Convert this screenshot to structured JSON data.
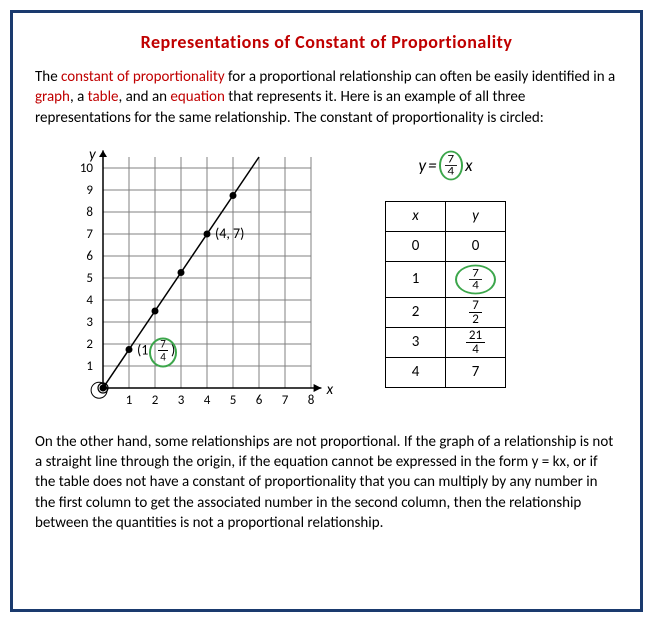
{
  "title": "Representations of Constant of Proportionality",
  "intro": {
    "t1": "The ",
    "h1": "constant of proportionality",
    "t2": " for a proportional relationship can often be easily identified in a ",
    "h2": "graph",
    "t3": ", a ",
    "h3": "table",
    "t4": ", and an ",
    "h4": "equation",
    "t5": " that represents it. Here is an example of all three representations for the same relationship. The constant of proportionality is circled:"
  },
  "graph": {
    "xlabel": "x",
    "ylabel": "y",
    "xlim": [
      0,
      8
    ],
    "ylim": [
      0,
      10.5
    ],
    "xticks": [
      1,
      2,
      3,
      4,
      5,
      6,
      7,
      8
    ],
    "yticks": [
      1,
      2,
      3,
      4,
      5,
      6,
      7,
      8,
      9,
      10
    ],
    "points": [
      {
        "x": 0,
        "y": 0
      },
      {
        "x": 1,
        "y": 1.75
      },
      {
        "x": 2,
        "y": 3.5
      },
      {
        "x": 3,
        "y": 5.25
      },
      {
        "x": 4,
        "y": 7
      },
      {
        "x": 5,
        "y": 8.75
      }
    ],
    "labelA": "(4, 7)",
    "labelB_prefix": "(1, ",
    "labelB_num": "7",
    "labelB_den": "4",
    "labelB_suffix": ")",
    "line_color": "#000000",
    "grid_color": "#808080",
    "axis_color": "#000000",
    "circle_color": "#3ca64b",
    "dot_radius": 3.5,
    "grid_width": 1,
    "axis_width": 1.5
  },
  "equation": {
    "lhs": "y",
    "eq": " = ",
    "num": "7",
    "den": "4",
    "rhs": "x"
  },
  "table": {
    "col_x": "x",
    "col_y": "y",
    "rows": [
      {
        "x": "0",
        "y_type": "plain",
        "y": "0",
        "circled": false
      },
      {
        "x": "1",
        "y_type": "frac",
        "n": "7",
        "d": "4",
        "circled": true
      },
      {
        "x": "2",
        "y_type": "frac",
        "n": "7",
        "d": "2",
        "circled": false
      },
      {
        "x": "3",
        "y_type": "frac",
        "n": "21",
        "d": "4",
        "circled": false
      },
      {
        "x": "4",
        "y_type": "plain",
        "y": "7",
        "circled": false
      }
    ]
  },
  "outro": "On the other hand, some relationships are not proportional. If the graph of a relationship is not a straight line through the origin, if the equation cannot be expressed in the form y = kx, or if the table does not have a constant of proportionality that you can multiply by any number in the first column to get the associated number in the second column, then the relationship between the quantities is not a proportional relationship.",
  "colors": {
    "border": "#1a3a6e",
    "title": "#c00000",
    "text": "#000000",
    "highlight": "#c00000",
    "circle": "#3ca64b"
  }
}
